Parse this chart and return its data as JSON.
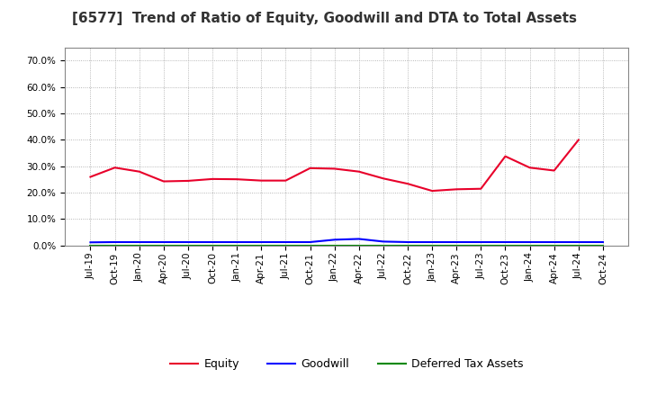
{
  "title": "[6577]  Trend of Ratio of Equity, Goodwill and DTA to Total Assets",
  "x_labels": [
    "Jul-19",
    "Oct-19",
    "Jan-20",
    "Apr-20",
    "Jul-20",
    "Oct-20",
    "Jan-21",
    "Apr-21",
    "Jul-21",
    "Oct-21",
    "Jan-22",
    "Apr-22",
    "Jul-22",
    "Oct-22",
    "Jan-23",
    "Apr-23",
    "Jul-23",
    "Oct-23",
    "Jan-24",
    "Apr-24",
    "Jul-24",
    "Oct-24"
  ],
  "equity": [
    0.26,
    0.295,
    0.28,
    0.243,
    0.245,
    0.252,
    0.251,
    0.246,
    0.246,
    0.293,
    0.291,
    0.28,
    0.254,
    0.234,
    0.207,
    0.213,
    0.215,
    0.338,
    0.295,
    0.284,
    0.4,
    null
  ],
  "goodwill": [
    0.012,
    0.013,
    0.013,
    0.013,
    0.013,
    0.013,
    0.013,
    0.013,
    0.013,
    0.013,
    0.022,
    0.025,
    0.015,
    0.013,
    0.013,
    0.013,
    0.013,
    0.013,
    0.013,
    0.013,
    0.013,
    0.013
  ],
  "dta": [
    0.001,
    0.001,
    0.001,
    0.001,
    0.001,
    0.001,
    0.001,
    0.001,
    0.001,
    0.001,
    0.001,
    0.001,
    0.001,
    0.001,
    0.001,
    0.001,
    0.001,
    0.001,
    0.001,
    0.001,
    0.001,
    0.001
  ],
  "equity_color": "#e8002a",
  "goodwill_color": "#0000ff",
  "dta_color": "#008800",
  "ylim": [
    0.0,
    0.75
  ],
  "yticks": [
    0.0,
    0.1,
    0.2,
    0.3,
    0.4,
    0.5,
    0.6,
    0.7
  ],
  "background_color": "#ffffff",
  "grid_color": "#999999",
  "title_fontsize": 11,
  "tick_fontsize": 7.5,
  "legend_fontsize": 9
}
